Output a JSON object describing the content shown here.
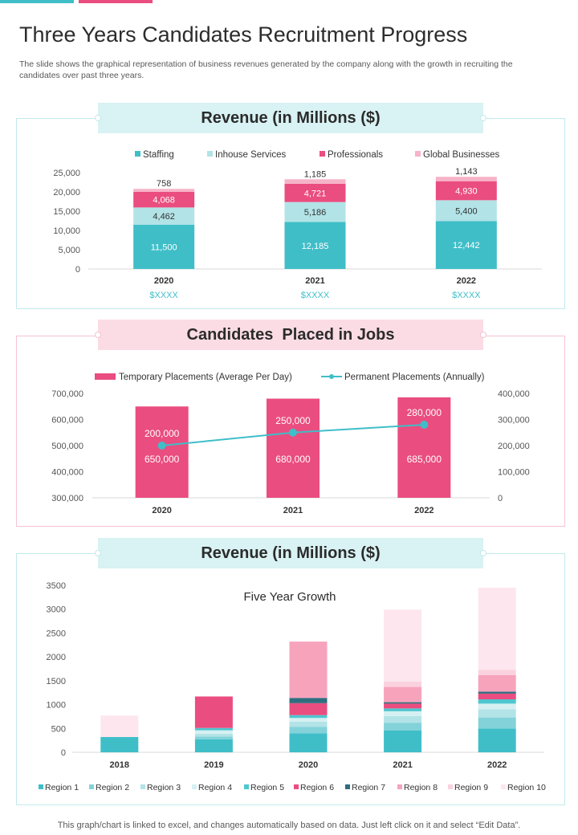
{
  "header": {
    "title": "Three Years Candidates Recruitment Progress",
    "subtitle": "The slide shows the graphical representation of business revenues generated by the company along with the growth in recruiting the candidates over past three years."
  },
  "banners": {
    "revenue1": "Revenue (in Millions ($)",
    "candidates": "Candidates  Placed in Jobs",
    "revenue2": "Revenue (in Millions ($)"
  },
  "footer": "This graph/chart is linked to excel,  and changes automatically based on data. Just left click on it and select “Edit Data”.",
  "colors": {
    "teal": "#3fbec8",
    "pink": "#ea4d7f",
    "light_teal": "#b2e3e7",
    "light_pink": "#f7b3c8"
  },
  "chart_data": [
    {
      "type": "bar",
      "stacked": true,
      "title": "Revenue (in Millions ($)",
      "categories": [
        "2020",
        "2021",
        "2022"
      ],
      "category_sublabels": [
        "$XXXX",
        "$XXXX",
        "$XXXX"
      ],
      "series": [
        {
          "name": "Staffing",
          "color": "#3fbec8",
          "values": [
            11500,
            12185,
            12442
          ],
          "labels": [
            "11,500",
            "12,185",
            "12,442"
          ]
        },
        {
          "name": "Inhouse Services",
          "color": "#b2e3e7",
          "values": [
            4462,
            5186,
            5400
          ],
          "labels": [
            "4,462",
            "5,186",
            "5,400"
          ]
        },
        {
          "name": "Professionals",
          "color": "#ea4d7f",
          "values": [
            4068,
            4721,
            4930
          ],
          "labels": [
            "4,068",
            "4,721",
            "4,930"
          ]
        },
        {
          "name": "Global Businesses",
          "color": "#f7b3c8",
          "values": [
            758,
            1185,
            1143
          ],
          "labels": [
            "758",
            "1,185",
            "1,143"
          ]
        }
      ],
      "ylim": [
        0,
        25000
      ],
      "yticks": [
        0,
        5000,
        10000,
        15000,
        20000,
        25000
      ],
      "ytick_labels": [
        "0",
        "5,000",
        "10,000",
        "15,000",
        "20,000",
        "25,000"
      ],
      "legend": "top"
    },
    {
      "type": "bar",
      "combo": "bar+line",
      "title": "Candidates  Placed in Jobs",
      "categories": [
        "2020",
        "2021",
        "2022"
      ],
      "series": [
        {
          "name": "Temporary Placements (Average Per Day)",
          "kind": "bar",
          "axis": "left",
          "color": "#ea4d7f",
          "values": [
            650000,
            680000,
            685000
          ],
          "labels": [
            "650,000",
            "680,000",
            "685,000"
          ]
        },
        {
          "name": "Permanent Placements (Annually)",
          "kind": "line",
          "axis": "right",
          "color": "#3fbec8",
          "values": [
            200000,
            250000,
            280000
          ],
          "labels": [
            "200,000",
            "250,000",
            "280,000"
          ]
        }
      ],
      "y_left": {
        "lim": [
          300000,
          700000
        ],
        "ticks": [
          300000,
          400000,
          500000,
          600000,
          700000
        ],
        "tick_labels": [
          "300,000",
          "400,000",
          "500,000",
          "600,000",
          "700,000"
        ]
      },
      "y_right": {
        "lim": [
          0,
          400000
        ],
        "ticks": [
          0,
          100000,
          200000,
          300000,
          400000
        ],
        "tick_labels": [
          "0",
          "100,000",
          "200,000",
          "300,000",
          "400,000"
        ]
      },
      "legend": "top"
    },
    {
      "type": "bar",
      "stacked": true,
      "title": "Five Year Growth",
      "categories": [
        "2018",
        "2019",
        "2020",
        "2021",
        "2022"
      ],
      "series": [
        {
          "name": "Region 1",
          "color": "#3fbec8",
          "values": [
            320,
            270,
            400,
            460,
            500
          ]
        },
        {
          "name": "Region 2",
          "color": "#83d2d9",
          "values": [
            0,
            60,
            130,
            160,
            230
          ]
        },
        {
          "name": "Region 3",
          "color": "#b2e3e7",
          "values": [
            0,
            60,
            110,
            140,
            170
          ]
        },
        {
          "name": "Region 4",
          "color": "#d6f0f2",
          "values": [
            0,
            70,
            80,
            100,
            120
          ]
        },
        {
          "name": "Region 5",
          "color": "#4fc6cf",
          "values": [
            0,
            50,
            60,
            60,
            90
          ]
        },
        {
          "name": "Region 6",
          "color": "#ea4d7f",
          "values": [
            0,
            660,
            250,
            100,
            120
          ]
        },
        {
          "name": "Region 7",
          "color": "#2f6e7e",
          "values": [
            0,
            0,
            110,
            30,
            40
          ]
        },
        {
          "name": "Region 8",
          "color": "#f7a3bc",
          "values": [
            0,
            0,
            1180,
            320,
            350
          ]
        },
        {
          "name": "Region 9",
          "color": "#fad2de",
          "values": [
            0,
            0,
            0,
            110,
            110
          ]
        },
        {
          "name": "Region 10",
          "color": "#fde6ee",
          "values": [
            450,
            0,
            0,
            1510,
            1720
          ]
        }
      ],
      "ylim": [
        0,
        3500
      ],
      "yticks": [
        0,
        500,
        1000,
        1500,
        2000,
        2500,
        3000,
        3500
      ],
      "ytick_labels": [
        "0",
        "500",
        "1000",
        "1500",
        "2000",
        "2500",
        "3000",
        "3500"
      ],
      "legend": "bottom"
    }
  ]
}
